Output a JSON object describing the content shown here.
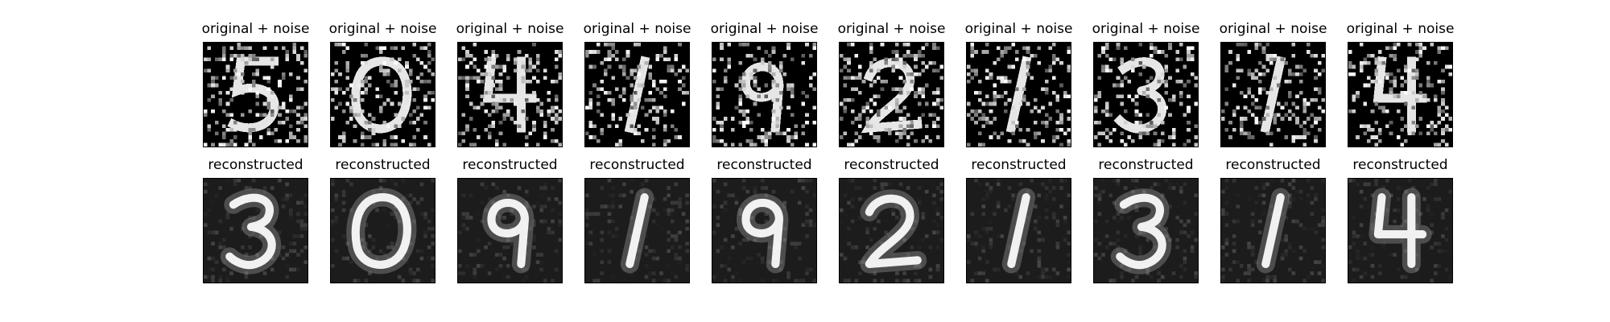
{
  "figure": {
    "rows": [
      {
        "label": "original + noise",
        "kind": "noisy",
        "background": "#000000",
        "foreground": "#ffffff",
        "panels": [
          {
            "title": "original + noise",
            "digit": "5"
          },
          {
            "title": "original + noise",
            "digit": "0"
          },
          {
            "title": "original + noise",
            "digit": "4"
          },
          {
            "title": "original + noise",
            "digit": "1"
          },
          {
            "title": "original + noise",
            "digit": "9"
          },
          {
            "title": "original + noise",
            "digit": "2"
          },
          {
            "title": "original + noise",
            "digit": "1"
          },
          {
            "title": "original + noise",
            "digit": "3"
          },
          {
            "title": "original + noise",
            "digit": "1"
          },
          {
            "title": "original + noise",
            "digit": "4"
          }
        ]
      },
      {
        "label": "reconstructed",
        "kind": "reconstructed",
        "background": "#1c1c1c",
        "foreground": "#ffffff",
        "panels": [
          {
            "title": "reconstructed",
            "digit": "3"
          },
          {
            "title": "reconstructed",
            "digit": "0"
          },
          {
            "title": "reconstructed",
            "digit": "9"
          },
          {
            "title": "reconstructed",
            "digit": "1"
          },
          {
            "title": "reconstructed",
            "digit": "9"
          },
          {
            "title": "reconstructed",
            "digit": "2"
          },
          {
            "title": "reconstructed",
            "digit": "1"
          },
          {
            "title": "reconstructed",
            "digit": "3"
          },
          {
            "title": "reconstructed",
            "digit": "1"
          },
          {
            "title": "reconstructed",
            "digit": "4"
          }
        ]
      }
    ]
  }
}
